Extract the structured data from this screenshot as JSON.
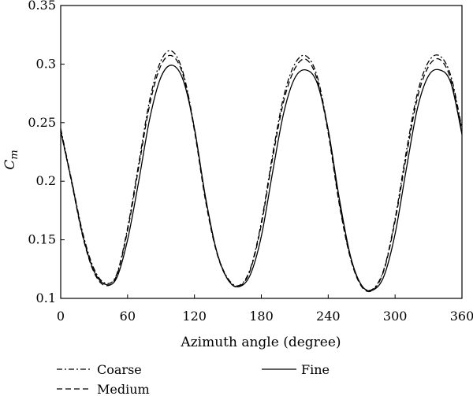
{
  "chart_data": {
    "type": "line",
    "xlabel": "Azimuth angle (degree)",
    "ylabel": {
      "base": "C",
      "sub": "m"
    },
    "xlim": [
      0,
      360
    ],
    "ylim": [
      0.1,
      0.35
    ],
    "x_ticks": [
      "0",
      "60",
      "120",
      "180",
      "240",
      "300",
      "360"
    ],
    "y_ticks": [
      "0.1",
      "0.15",
      "0.2",
      "0.25",
      "0.3",
      "0.35"
    ],
    "grid": false,
    "legend_position": "bottom",
    "series": [
      {
        "name": "Coarse",
        "style": "dash-dot",
        "x": [
          0,
          10,
          20,
          30,
          40,
          50,
          60,
          70,
          80,
          90,
          100,
          110,
          120,
          130,
          140,
          150,
          160,
          170,
          180,
          190,
          200,
          210,
          220,
          230,
          240,
          250,
          260,
          270,
          280,
          290,
          300,
          310,
          320,
          330,
          340,
          350,
          360
        ],
        "y": [
          0.245,
          0.2,
          0.155,
          0.125,
          0.113,
          0.12,
          0.16,
          0.215,
          0.27,
          0.303,
          0.311,
          0.292,
          0.245,
          0.185,
          0.14,
          0.117,
          0.111,
          0.125,
          0.165,
          0.222,
          0.272,
          0.3,
          0.307,
          0.29,
          0.243,
          0.182,
          0.135,
          0.111,
          0.108,
          0.125,
          0.168,
          0.225,
          0.275,
          0.302,
          0.307,
          0.29,
          0.245
        ]
      },
      {
        "name": "Medium",
        "style": "dashed",
        "x": [
          0,
          10,
          20,
          30,
          40,
          50,
          60,
          70,
          80,
          90,
          100,
          110,
          120,
          130,
          140,
          150,
          160,
          170,
          180,
          190,
          200,
          210,
          220,
          230,
          240,
          250,
          260,
          270,
          280,
          290,
          300,
          310,
          320,
          330,
          340,
          350,
          360
        ],
        "y": [
          0.243,
          0.198,
          0.152,
          0.122,
          0.111,
          0.119,
          0.158,
          0.212,
          0.266,
          0.299,
          0.307,
          0.29,
          0.243,
          0.183,
          0.139,
          0.116,
          0.11,
          0.124,
          0.163,
          0.219,
          0.268,
          0.296,
          0.304,
          0.287,
          0.241,
          0.18,
          0.134,
          0.11,
          0.107,
          0.124,
          0.166,
          0.221,
          0.271,
          0.298,
          0.304,
          0.287,
          0.243
        ]
      },
      {
        "name": "Fine",
        "style": "solid",
        "x": [
          0,
          10,
          20,
          30,
          40,
          50,
          60,
          70,
          80,
          90,
          100,
          110,
          120,
          130,
          140,
          150,
          160,
          170,
          180,
          190,
          200,
          210,
          220,
          230,
          240,
          250,
          260,
          270,
          280,
          290,
          300,
          310,
          320,
          330,
          340,
          350,
          360
        ],
        "y": [
          0.243,
          0.199,
          0.153,
          0.123,
          0.112,
          0.117,
          0.15,
          0.2,
          0.254,
          0.289,
          0.299,
          0.286,
          0.245,
          0.186,
          0.14,
          0.116,
          0.11,
          0.12,
          0.153,
          0.207,
          0.258,
          0.288,
          0.295,
          0.284,
          0.244,
          0.185,
          0.136,
          0.111,
          0.107,
          0.119,
          0.155,
          0.21,
          0.262,
          0.29,
          0.295,
          0.284,
          0.24
        ]
      }
    ]
  }
}
